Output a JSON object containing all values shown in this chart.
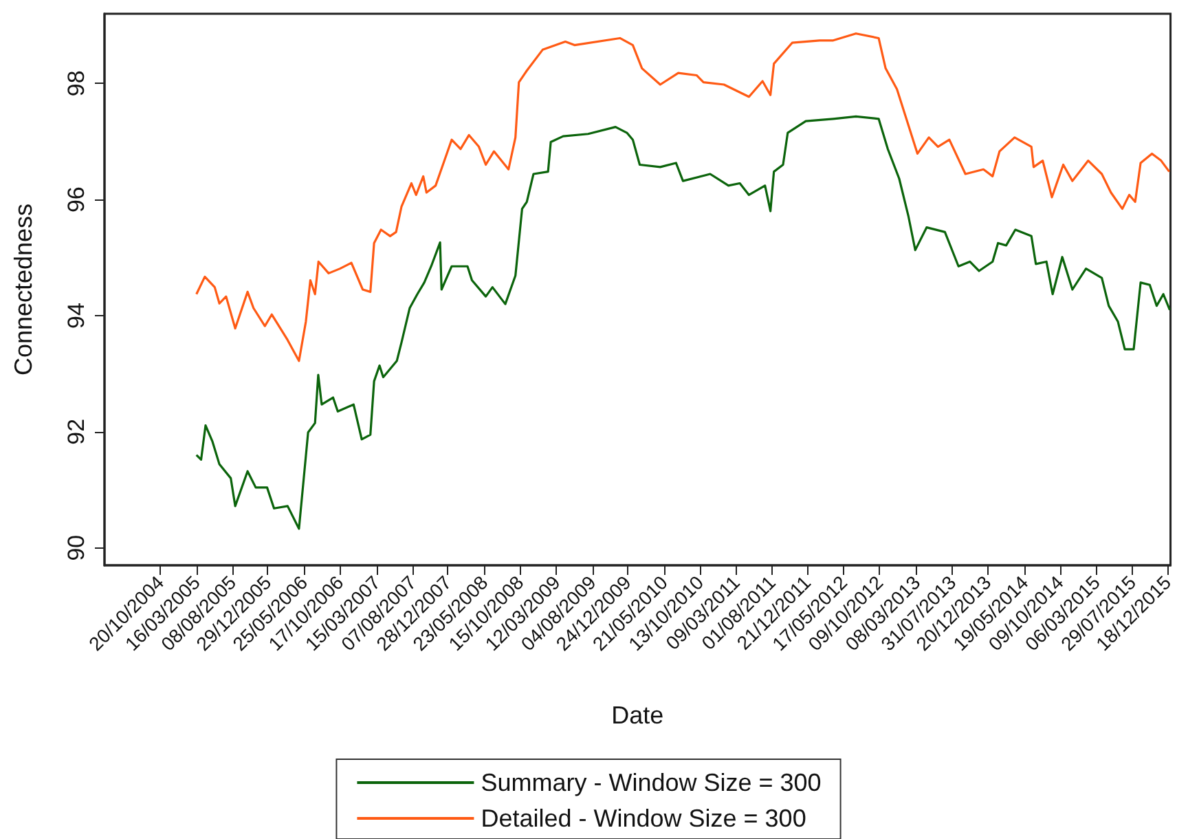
{
  "chart_data": {
    "type": "line",
    "xlabel": "Date",
    "ylabel": "Connectedness",
    "xlim": [
      "2004-03-09",
      "2015-12-31"
    ],
    "ylim": [
      89.7,
      99.2
    ],
    "yticks": [
      90,
      92,
      94,
      96,
      98
    ],
    "xticks": [
      {
        "value": "2004-10-20",
        "label": "20/10/2004"
      },
      {
        "value": "2005-03-16",
        "label": "16/03/2005"
      },
      {
        "value": "2005-08-08",
        "label": "08/08/2005"
      },
      {
        "value": "2005-12-29",
        "label": "29/12/2005"
      },
      {
        "value": "2006-05-25",
        "label": "25/05/2006"
      },
      {
        "value": "2006-10-17",
        "label": "17/10/2006"
      },
      {
        "value": "2007-03-15",
        "label": "15/03/2007"
      },
      {
        "value": "2007-08-07",
        "label": "07/08/2007"
      },
      {
        "value": "2007-12-28",
        "label": "28/12/2007"
      },
      {
        "value": "2008-05-23",
        "label": "23/05/2008"
      },
      {
        "value": "2008-10-15",
        "label": "15/10/2008"
      },
      {
        "value": "2009-03-12",
        "label": "12/03/2009"
      },
      {
        "value": "2009-08-04",
        "label": "04/08/2009"
      },
      {
        "value": "2009-12-24",
        "label": "24/12/2009"
      },
      {
        "value": "2010-05-21",
        "label": "21/05/2010"
      },
      {
        "value": "2010-10-13",
        "label": "13/10/2010"
      },
      {
        "value": "2011-03-09",
        "label": "09/03/2011"
      },
      {
        "value": "2011-08-01",
        "label": "01/08/2011"
      },
      {
        "value": "2011-12-21",
        "label": "21/12/2011"
      },
      {
        "value": "2012-05-17",
        "label": "17/05/2012"
      },
      {
        "value": "2012-10-09",
        "label": "09/10/2012"
      },
      {
        "value": "2013-03-08",
        "label": "08/03/2013"
      },
      {
        "value": "2013-07-31",
        "label": "31/07/2013"
      },
      {
        "value": "2013-12-20",
        "label": "20/12/2013"
      },
      {
        "value": "2014-05-19",
        "label": "19/05/2014"
      },
      {
        "value": "2014-10-09",
        "label": "09/10/2014"
      },
      {
        "value": "2015-03-06",
        "label": "06/03/2015"
      },
      {
        "value": "2015-07-29",
        "label": "29/07/2015"
      },
      {
        "value": "2015-12-18",
        "label": "18/12/2015"
      }
    ],
    "legend": "bottom",
    "series": [
      {
        "name": "Summary - Window Size = 300",
        "color": "#0b640b",
        "x": [
          "2005-03-16",
          "2005-04-04",
          "2005-04-22",
          "2005-05-20",
          "2005-06-17",
          "2005-08-02",
          "2005-08-20",
          "2005-10-09",
          "2005-11-11",
          "2005-12-27",
          "2006-01-24",
          "2006-03-20",
          "2006-05-05",
          "2006-06-11",
          "2006-07-09",
          "2006-07-22",
          "2006-08-05",
          "2006-09-20",
          "2006-10-09",
          "2006-12-12",
          "2007-01-14",
          "2007-02-18",
          "2007-03-05",
          "2007-03-27",
          "2007-04-11",
          "2007-06-05",
          "2007-06-24",
          "2007-07-27",
          "2007-08-27",
          "2007-09-24",
          "2007-10-22",
          "2007-11-27",
          "2007-12-03",
          "2008-01-13",
          "2008-03-17",
          "2008-04-04",
          "2008-05-30",
          "2008-06-26",
          "2008-08-17",
          "2008-09-27",
          "2008-10-24",
          "2008-11-12",
          "2008-12-09",
          "2009-02-06",
          "2009-02-17",
          "2009-04-08",
          "2009-07-18",
          "2009-11-06",
          "2009-12-22",
          "2010-01-15",
          "2010-02-12",
          "2010-05-06",
          "2010-07-09",
          "2010-08-06",
          "2010-11-24",
          "2011-02-06",
          "2011-03-24",
          "2011-04-30",
          "2011-07-04",
          "2011-07-26",
          "2011-08-09",
          "2011-09-15",
          "2011-10-04",
          "2011-12-16",
          "2012-04-05",
          "2012-07-06",
          "2012-10-06",
          "2012-11-12",
          "2012-12-28",
          "2013-02-03",
          "2013-03-03",
          "2013-04-18",
          "2013-07-01",
          "2013-08-25",
          "2013-10-10",
          "2013-11-16",
          "2014-01-10",
          "2014-02-01",
          "2014-03-06",
          "2014-04-12",
          "2014-06-16",
          "2014-07-04",
          "2014-08-16",
          "2014-09-10",
          "2014-10-19",
          "2014-11-29",
          "2015-01-23",
          "2015-03-28",
          "2015-04-25",
          "2015-06-01",
          "2015-06-29",
          "2015-08-04",
          "2015-09-01",
          "2015-10-08",
          "2015-11-05",
          "2015-12-02",
          "2015-12-28"
        ],
        "values": [
          91.6,
          91.52,
          92.11,
          91.83,
          91.44,
          91.2,
          90.72,
          91.32,
          91.04,
          91.04,
          90.68,
          90.72,
          90.33,
          91.99,
          92.15,
          92.98,
          92.47,
          92.59,
          92.35,
          92.47,
          91.87,
          91.95,
          92.87,
          93.14,
          92.94,
          93.22,
          93.54,
          94.13,
          94.37,
          94.57,
          94.85,
          95.26,
          94.45,
          94.85,
          94.85,
          94.61,
          94.33,
          94.49,
          94.2,
          94.69,
          95.84,
          95.96,
          96.44,
          96.48,
          96.99,
          97.09,
          97.13,
          97.25,
          97.15,
          97.03,
          96.6,
          96.56,
          96.63,
          96.32,
          96.44,
          96.24,
          96.28,
          96.08,
          96.24,
          95.8,
          96.48,
          96.6,
          97.15,
          97.35,
          97.39,
          97.43,
          97.39,
          96.87,
          96.36,
          95.72,
          95.13,
          95.52,
          95.44,
          94.85,
          94.93,
          94.77,
          94.93,
          95.25,
          95.21,
          95.48,
          95.37,
          94.89,
          94.93,
          94.37,
          95.01,
          94.45,
          94.81,
          94.65,
          94.17,
          93.9,
          93.42,
          93.42,
          94.57,
          94.53,
          94.17,
          94.37,
          94.1
        ]
      },
      {
        "name": "Detailed - Window Size = 300",
        "color": "#ff5a14",
        "x": [
          "2005-03-16",
          "2005-04-19",
          "2005-05-29",
          "2005-06-17",
          "2005-07-14",
          "2005-08-20",
          "2005-10-09",
          "2005-11-02",
          "2005-12-18",
          "2006-01-15",
          "2006-03-20",
          "2006-05-05",
          "2006-06-02",
          "2006-06-20",
          "2006-07-09",
          "2006-07-23",
          "2006-09-02",
          "2006-10-18",
          "2006-12-03",
          "2007-01-18",
          "2007-02-18",
          "2007-03-05",
          "2007-04-02",
          "2007-05-09",
          "2007-06-02",
          "2007-06-24",
          "2007-08-03",
          "2007-08-22",
          "2007-09-20",
          "2007-10-03",
          "2007-11-09",
          "2008-01-13",
          "2008-02-18",
          "2008-03-23",
          "2008-05-02",
          "2008-05-30",
          "2008-07-02",
          "2008-08-30",
          "2008-09-27",
          "2008-10-11",
          "2008-11-12",
          "2009-01-15",
          "2009-04-17",
          "2009-05-24",
          "2009-11-24",
          "2010-01-15",
          "2010-02-21",
          "2010-05-06",
          "2010-07-18",
          "2010-09-30",
          "2010-10-28",
          "2011-01-19",
          "2011-04-30",
          "2011-06-24",
          "2011-07-26",
          "2011-08-09",
          "2011-10-22",
          "2012-02-10",
          "2012-04-05",
          "2012-07-06",
          "2012-10-06",
          "2012-11-03",
          "2012-12-19",
          "2013-03-12",
          "2013-04-27",
          "2013-06-03",
          "2013-07-19",
          "2013-09-22",
          "2013-12-04",
          "2014-01-10",
          "2014-02-07",
          "2014-04-09",
          "2014-06-16",
          "2014-06-25",
          "2014-08-01",
          "2014-09-07",
          "2014-10-23",
          "2014-11-29",
          "2015-02-01",
          "2015-03-28",
          "2015-05-04",
          "2015-06-19",
          "2015-07-17",
          "2015-08-10",
          "2015-09-01",
          "2015-10-17",
          "2015-11-23",
          "2015-12-26"
        ],
        "values": [
          94.37,
          94.67,
          94.49,
          94.21,
          94.33,
          93.78,
          94.41,
          94.13,
          93.82,
          94.02,
          93.58,
          93.22,
          93.9,
          94.61,
          94.37,
          94.93,
          94.73,
          94.81,
          94.91,
          94.45,
          94.41,
          95.25,
          95.48,
          95.37,
          95.44,
          95.88,
          96.28,
          96.08,
          96.4,
          96.12,
          96.24,
          97.03,
          96.87,
          97.11,
          96.91,
          96.6,
          96.83,
          96.52,
          97.07,
          98.02,
          98.22,
          98.58,
          98.72,
          98.66,
          98.78,
          98.66,
          98.26,
          97.98,
          98.18,
          98.14,
          98.02,
          97.98,
          97.77,
          98.04,
          97.8,
          98.34,
          98.7,
          98.74,
          98.74,
          98.86,
          98.78,
          98.26,
          97.9,
          96.79,
          97.07,
          96.91,
          97.03,
          96.44,
          96.52,
          96.4,
          96.83,
          97.07,
          96.91,
          96.56,
          96.67,
          96.04,
          96.6,
          96.32,
          96.67,
          96.44,
          96.12,
          95.84,
          96.08,
          95.96,
          96.63,
          96.79,
          96.67,
          96.48
        ]
      }
    ]
  }
}
